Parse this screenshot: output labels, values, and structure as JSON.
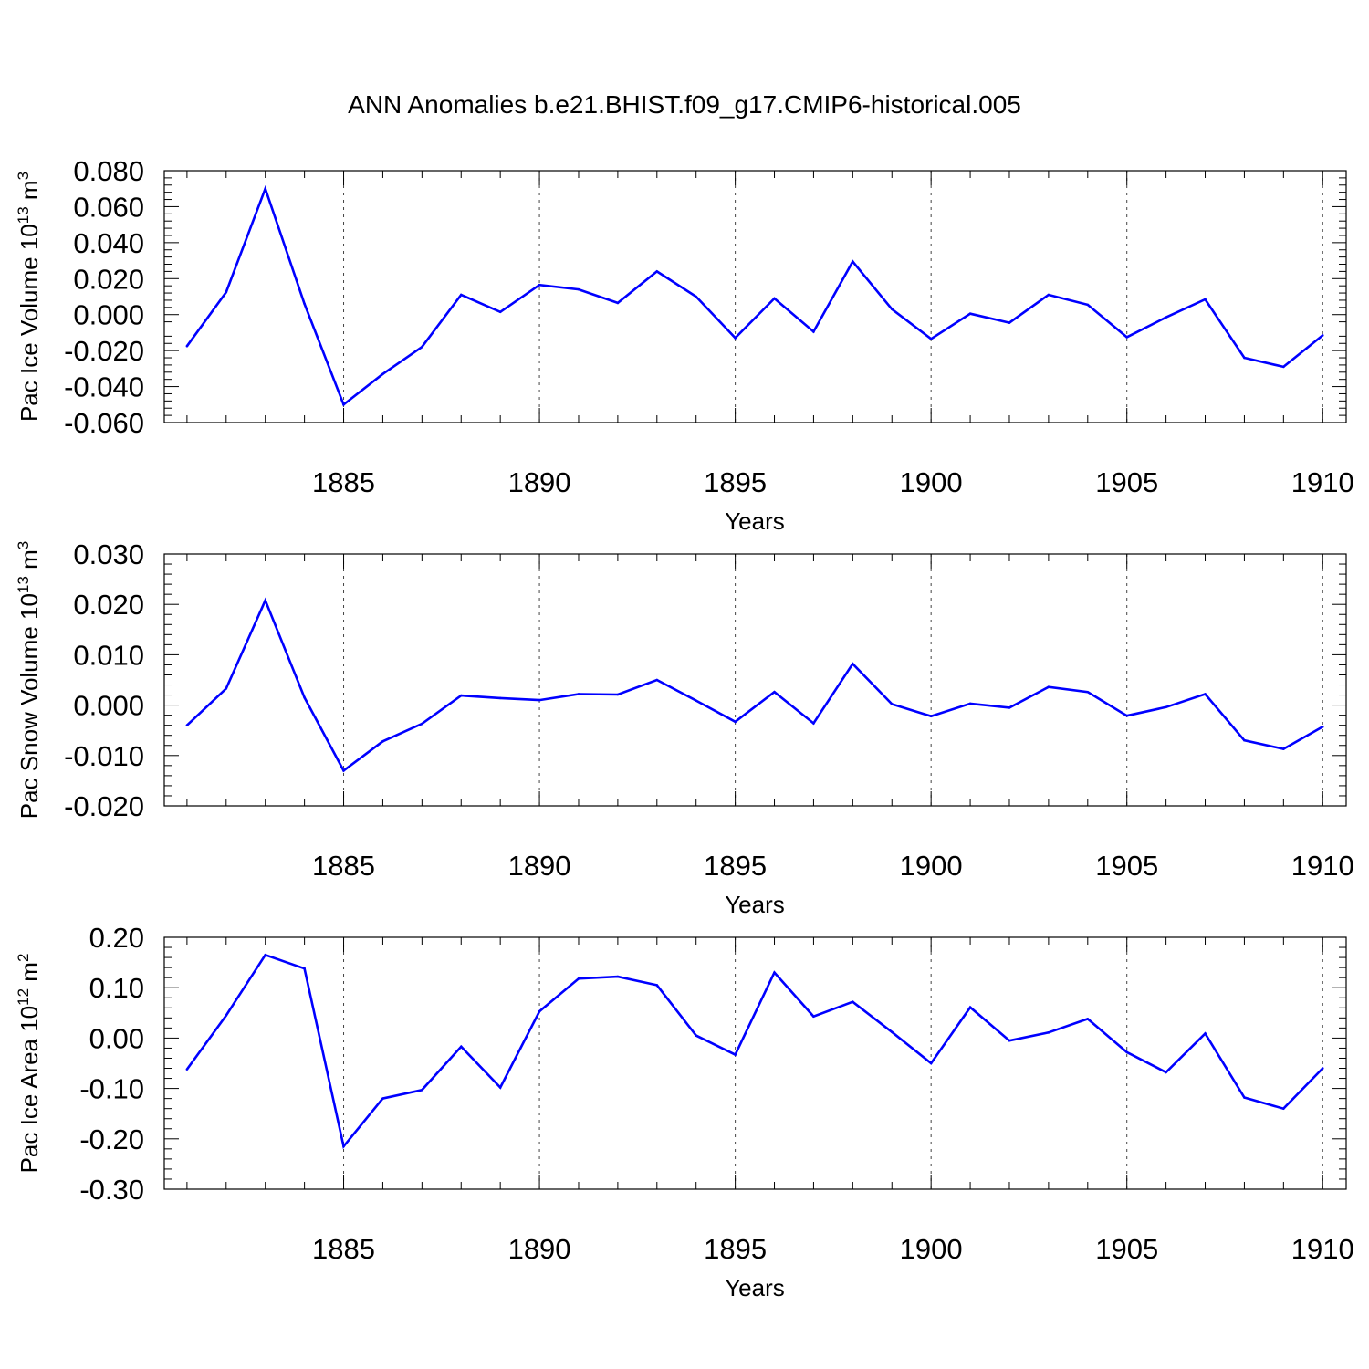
{
  "title": "ANN Anomalies b.e21.BHIST.f09_g17.CMIP6-historical.005",
  "line_color": "#0000ff",
  "chart_data": [
    {
      "type": "line",
      "ylabel_main": "Pac Ice Volume 10",
      "ylabel_exp": "13",
      "ylabel_unit": " m",
      "ylabel_unit_exp": "3",
      "xlabel": "Years",
      "xlim": [
        1881,
        1910
      ],
      "ylim": [
        -0.06,
        0.08
      ],
      "yticks": [
        -0.06,
        -0.04,
        -0.02,
        0.0,
        0.02,
        0.04,
        0.06,
        0.08
      ],
      "ytick_labels": [
        "-0.060",
        "-0.040",
        "-0.020",
        "0.000",
        "0.020",
        "0.040",
        "0.060",
        "0.080"
      ],
      "xticks": [
        1885,
        1890,
        1895,
        1900,
        1905,
        1910
      ],
      "xtick_labels": [
        "1885",
        "1890",
        "1895",
        "1900",
        "1905",
        "1910"
      ],
      "grid": "dashed vertical at major x ticks",
      "x": [
        1881,
        1882,
        1883,
        1884,
        1885,
        1886,
        1887,
        1888,
        1889,
        1890,
        1891,
        1892,
        1893,
        1894,
        1895,
        1896,
        1897,
        1898,
        1899,
        1900,
        1901,
        1902,
        1903,
        1904,
        1905,
        1906,
        1907,
        1908,
        1909,
        1910
      ],
      "values": [
        -0.0175,
        0.0125,
        0.07,
        0.006,
        -0.05,
        -0.033,
        -0.018,
        0.011,
        0.0015,
        0.0165,
        0.014,
        0.0065,
        0.024,
        0.01,
        -0.013,
        0.009,
        -0.0095,
        0.0295,
        0.003,
        -0.0135,
        0.0005,
        -0.0045,
        0.011,
        0.0055,
        -0.0125,
        -0.0015,
        0.0085,
        -0.024,
        -0.029,
        -0.0115
      ]
    },
    {
      "type": "line",
      "ylabel_main": "Pac Snow Volume 10",
      "ylabel_exp": "13",
      "ylabel_unit": " m",
      "ylabel_unit_exp": "3",
      "xlabel": "Years",
      "xlim": [
        1881,
        1910
      ],
      "ylim": [
        -0.02,
        0.03
      ],
      "yticks": [
        -0.02,
        -0.01,
        0.0,
        0.01,
        0.02,
        0.03
      ],
      "ytick_labels": [
        "-0.020",
        "-0.010",
        "0.000",
        "0.010",
        "0.020",
        "0.030"
      ],
      "xticks": [
        1885,
        1890,
        1895,
        1900,
        1905,
        1910
      ],
      "xtick_labels": [
        "1885",
        "1890",
        "1895",
        "1900",
        "1905",
        "1910"
      ],
      "grid": "dashed vertical at major x ticks",
      "x": [
        1881,
        1882,
        1883,
        1884,
        1885,
        1886,
        1887,
        1888,
        1889,
        1890,
        1891,
        1892,
        1893,
        1894,
        1895,
        1896,
        1897,
        1898,
        1899,
        1900,
        1901,
        1902,
        1903,
        1904,
        1905,
        1906,
        1907,
        1908,
        1909,
        1910
      ],
      "values": [
        -0.004,
        0.0033,
        0.0208,
        0.0015,
        -0.013,
        -0.0072,
        -0.0037,
        0.0019,
        0.0014,
        0.001,
        0.0022,
        0.0021,
        0.005,
        0.0009,
        -0.0033,
        0.0026,
        -0.0036,
        0.0082,
        0.0002,
        -0.0022,
        0.0003,
        -0.0005,
        0.0036,
        0.0026,
        -0.0021,
        -0.0004,
        0.0022,
        -0.007,
        -0.0087,
        -0.0043
      ]
    },
    {
      "type": "line",
      "ylabel_main": "Pac Ice Area 10",
      "ylabel_exp": "12",
      "ylabel_unit": " m",
      "ylabel_unit_exp": "2",
      "xlabel": "Years",
      "xlim": [
        1881,
        1910
      ],
      "ylim": [
        -0.3,
        0.2
      ],
      "yticks": [
        -0.3,
        -0.2,
        -0.1,
        0.0,
        0.1,
        0.2
      ],
      "ytick_labels": [
        "-0.30",
        "-0.20",
        "-0.10",
        "0.00",
        "0.10",
        "0.20"
      ],
      "xticks": [
        1885,
        1890,
        1895,
        1900,
        1905,
        1910
      ],
      "xtick_labels": [
        "1885",
        "1890",
        "1895",
        "1900",
        "1905",
        "1910"
      ],
      "grid": "dashed vertical at major x ticks",
      "x": [
        1881,
        1882,
        1883,
        1884,
        1885,
        1886,
        1887,
        1888,
        1889,
        1890,
        1891,
        1892,
        1893,
        1894,
        1895,
        1896,
        1897,
        1898,
        1899,
        1900,
        1901,
        1902,
        1903,
        1904,
        1905,
        1906,
        1907,
        1908,
        1909,
        1910
      ],
      "values": [
        -0.062,
        0.045,
        0.165,
        0.138,
        -0.215,
        -0.12,
        -0.103,
        -0.017,
        -0.098,
        0.053,
        0.118,
        0.122,
        0.105,
        0.005,
        -0.033,
        0.13,
        0.043,
        0.072,
        0.012,
        -0.05,
        0.061,
        -0.005,
        0.011,
        0.038,
        -0.028,
        -0.068,
        0.009,
        -0.118,
        -0.14,
        -0.06
      ]
    }
  ]
}
